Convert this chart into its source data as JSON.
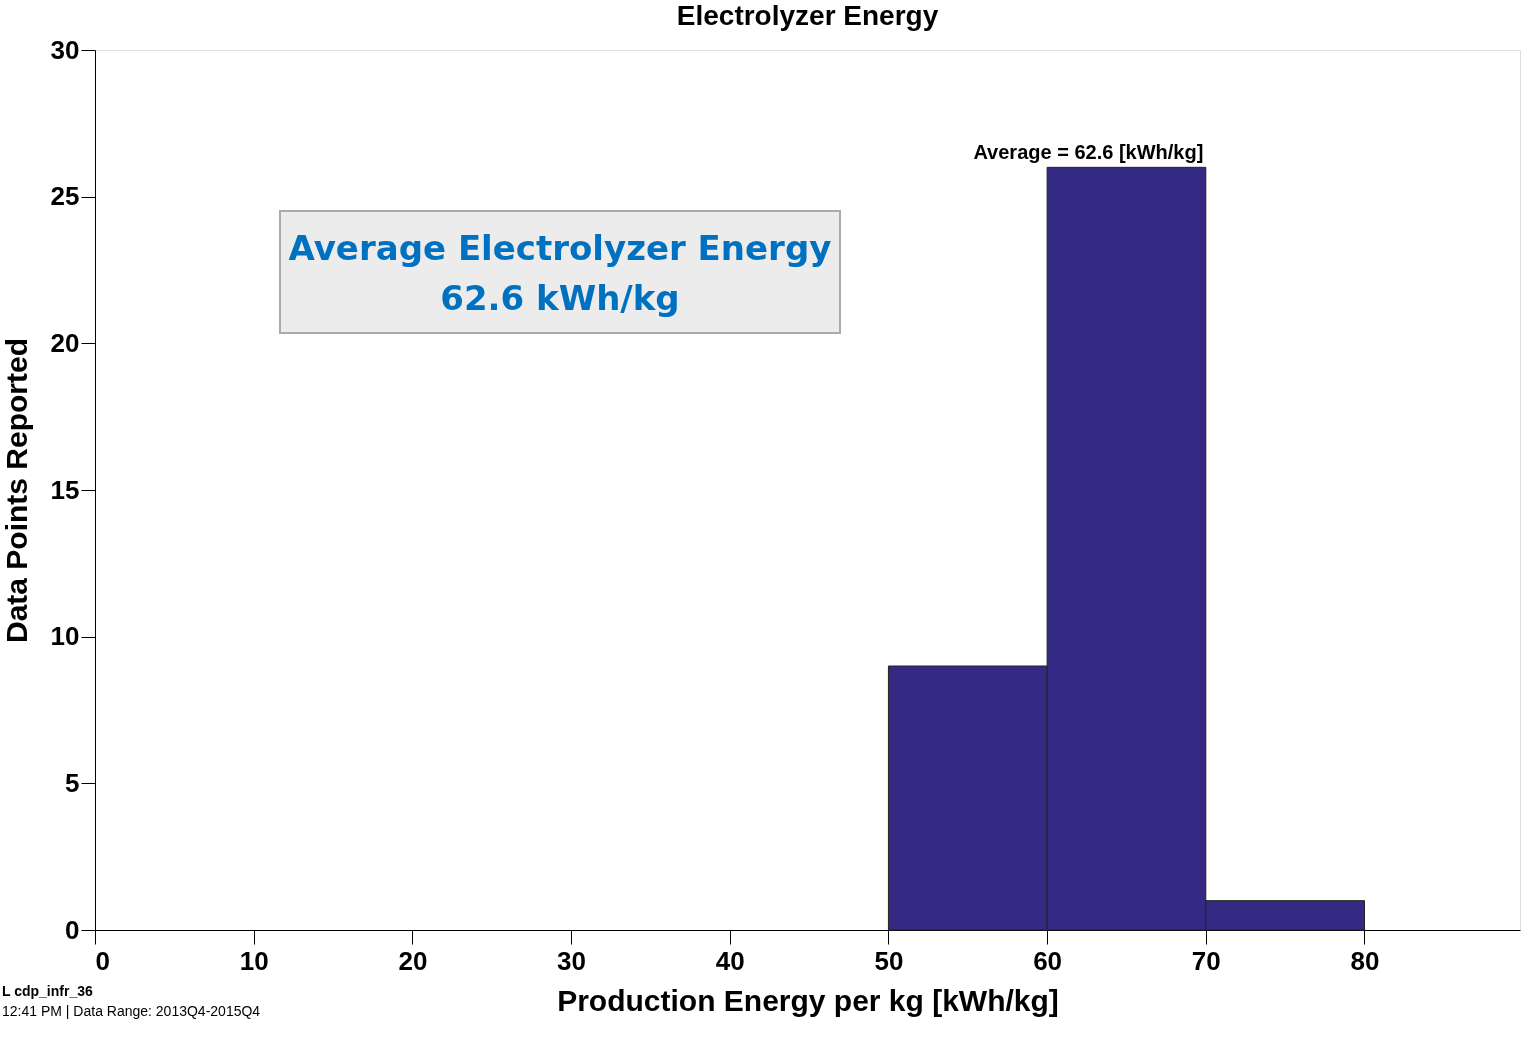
{
  "chart_data": {
    "type": "histogram",
    "title": "Electrolyzer Energy",
    "xlabel": "Production Energy per kg [kWh/kg]",
    "ylabel": "Data Points Reported",
    "bins": [
      50,
      60,
      70,
      80
    ],
    "values": [
      9,
      26,
      1
    ],
    "color": "#342a84",
    "xlim": [
      0,
      89.8
    ],
    "xticks": [
      0,
      10,
      20,
      30,
      40,
      50,
      60,
      70,
      80
    ],
    "ylim": [
      0,
      30
    ],
    "yticks": [
      0,
      5,
      10,
      15,
      20,
      25,
      30
    ],
    "grid": false,
    "annotations": [
      {
        "text": "Average = 62.6 [kWh/kg]",
        "x": 62.6,
        "y": 26
      },
      "Average Electrolyzer Energy",
      "62.6 kWh/kg",
      "L cdp_infr_36",
      "12:41 PM | Data Range: 2013Q4-2015Q4"
    ]
  }
}
